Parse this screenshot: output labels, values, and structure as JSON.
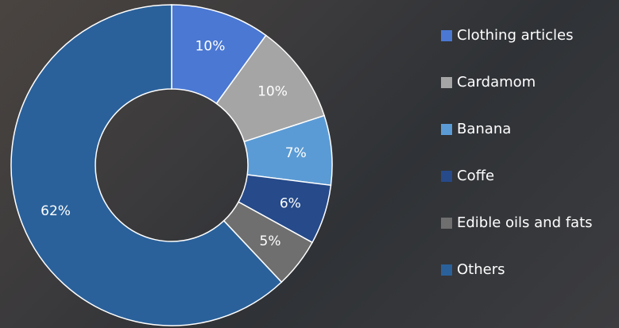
{
  "chart_data": {
    "type": "donut",
    "categories": [
      "Clothing articles",
      "Cardamom",
      "Banana",
      "Coffe",
      "Edible oils and fats",
      "Others"
    ],
    "values": [
      10,
      10,
      7,
      6,
      5,
      62
    ],
    "value_labels": [
      "10%",
      "10%",
      "7%",
      "6%",
      "5%",
      "62%"
    ],
    "colors": [
      "#4a78d3",
      "#a5a5a5",
      "#5b9bd5",
      "#264a8a",
      "#6f6f6f",
      "#2a619b"
    ],
    "legend": "right"
  }
}
